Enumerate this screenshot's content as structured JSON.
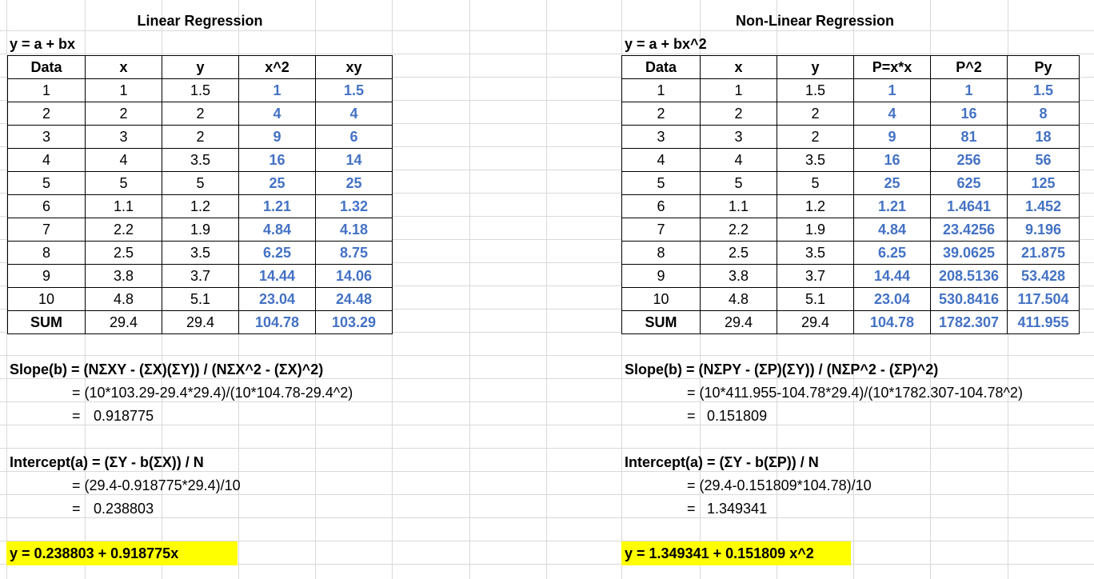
{
  "linear": {
    "title": "Linear Regression",
    "model": "y = a + bx",
    "headers": [
      "Data",
      "x",
      "y",
      "x^2",
      "xy"
    ],
    "rows": [
      [
        "1",
        "1",
        "1.5",
        "1",
        "1.5"
      ],
      [
        "2",
        "2",
        "2",
        "4",
        "4"
      ],
      [
        "3",
        "3",
        "2",
        "9",
        "6"
      ],
      [
        "4",
        "4",
        "3.5",
        "16",
        "14"
      ],
      [
        "5",
        "5",
        "5",
        "25",
        "25"
      ],
      [
        "6",
        "1.1",
        "1.2",
        "1.21",
        "1.32"
      ],
      [
        "7",
        "2.2",
        "1.9",
        "4.84",
        "4.18"
      ],
      [
        "8",
        "2.5",
        "3.5",
        "6.25",
        "8.75"
      ],
      [
        "9",
        "3.8",
        "3.7",
        "14.44",
        "14.06"
      ],
      [
        "10",
        "4.8",
        "5.1",
        "23.04",
        "24.48"
      ]
    ],
    "sum_row": [
      "SUM",
      "29.4",
      "29.4",
      "104.78",
      "103.29"
    ],
    "slope_formula": "Slope(b) = (NΣXY - (ΣX)(ΣY)) / (NΣX^2 - (ΣX)^2)",
    "slope_calc": "= (10*103.29-29.4*29.4)/(10*104.78-29.4^2)",
    "slope_eq": "=",
    "slope_value": "0.918775",
    "intercept_formula": "Intercept(a) = (ΣY - b(ΣX)) / N",
    "intercept_calc": "= (29.4-0.918775*29.4)/10",
    "intercept_eq": "=",
    "intercept_value": "0.238803",
    "result": "y = 0.238803 + 0.918775x"
  },
  "nonlinear": {
    "title": "Non-Linear Regression",
    "model": "y = a + bx^2",
    "headers": [
      "Data",
      "x",
      "y",
      "P=x*x",
      "P^2",
      "Py"
    ],
    "rows": [
      [
        "1",
        "1",
        "1.5",
        "1",
        "1",
        "1.5"
      ],
      [
        "2",
        "2",
        "2",
        "4",
        "16",
        "8"
      ],
      [
        "3",
        "3",
        "2",
        "9",
        "81",
        "18"
      ],
      [
        "4",
        "4",
        "3.5",
        "16",
        "256",
        "56"
      ],
      [
        "5",
        "5",
        "5",
        "25",
        "625",
        "125"
      ],
      [
        "6",
        "1.1",
        "1.2",
        "1.21",
        "1.4641",
        "1.452"
      ],
      [
        "7",
        "2.2",
        "1.9",
        "4.84",
        "23.4256",
        "9.196"
      ],
      [
        "8",
        "2.5",
        "3.5",
        "6.25",
        "39.0625",
        "21.875"
      ],
      [
        "9",
        "3.8",
        "3.7",
        "14.44",
        "208.5136",
        "53.428"
      ],
      [
        "10",
        "4.8",
        "5.1",
        "23.04",
        "530.8416",
        "117.504"
      ]
    ],
    "sum_row": [
      "SUM",
      "29.4",
      "29.4",
      "104.78",
      "1782.307",
      "411.955"
    ],
    "slope_formula": "Slope(b) = (NΣPY - (ΣP)(ΣY)) / (NΣP^2 - (ΣP)^2)",
    "slope_calc": "= (10*411.955-104.78*29.4)/(10*1782.307-104.78^2)",
    "slope_eq": "=",
    "slope_value": "0.151809",
    "intercept_formula": "Intercept(a) = (ΣY - b(ΣP)) / N",
    "intercept_calc": "= (29.4-0.151809*104.78)/10",
    "intercept_eq": "=",
    "intercept_value": "1.349341",
    "result": "y = 1.349341 + 0.151809 x^2"
  },
  "colors": {
    "computed_text": "#4472c4",
    "highlight": "#ffff00",
    "gridline": "#d9d9d9"
  }
}
